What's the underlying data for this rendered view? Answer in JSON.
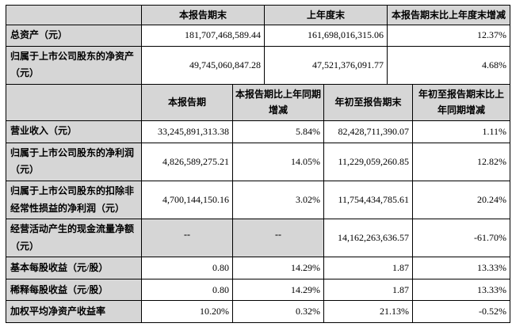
{
  "colors": {
    "header_bg": "#d6d6d6",
    "label_bg": "#d6d6d6",
    "border": "#000000",
    "cell_bg": "#ffffff"
  },
  "table1": {
    "headers": [
      "",
      "本报告期末",
      "上年度末",
      "本报告期末比上年度末增减"
    ],
    "rows": [
      {
        "label": "总资产（元）",
        "cells": [
          "181,707,468,589.44",
          "161,698,016,315.06",
          "12.37%"
        ]
      },
      {
        "label": "归属于上市公司股东的净资产（元）",
        "cells": [
          "49,745,060,847.28",
          "47,521,376,091.77",
          "4.68%"
        ]
      }
    ]
  },
  "table2": {
    "headers": [
      "",
      "本报告期",
      "本报告期比上年同期增减",
      "年初至报告期末",
      "年初至报告期末比上年同期增减"
    ],
    "rows": [
      {
        "label": "营业收入（元）",
        "cells": [
          "33,245,891,313.38",
          "5.84%",
          "82,428,711,390.07",
          "1.11%"
        ]
      },
      {
        "label": "归属于上市公司股东的净利润（元）",
        "cells": [
          "4,826,589,275.21",
          "14.05%",
          "11,229,059,260.85",
          "12.82%"
        ]
      },
      {
        "label": "归属于上市公司股东的扣除非经常性损益的净利润（元）",
        "cells": [
          "4,700,144,150.16",
          "3.02%",
          "11,754,434,785.61",
          "20.24%"
        ]
      },
      {
        "label": "经营活动产生的现金流量净额（元）",
        "cells": [
          "--",
          "--",
          "14,162,263,636.57",
          "-61.70%"
        ]
      },
      {
        "label": "基本每股收益（元/股）",
        "cells": [
          "0.80",
          "14.29%",
          "1.87",
          "13.33%"
        ]
      },
      {
        "label": "稀释每股收益（元/股）",
        "cells": [
          "0.80",
          "14.29%",
          "1.87",
          "13.33%"
        ]
      },
      {
        "label": "加权平均净资产收益率",
        "cells": [
          "10.20%",
          "0.32%",
          "21.13%",
          "-0.52%"
        ]
      }
    ]
  }
}
